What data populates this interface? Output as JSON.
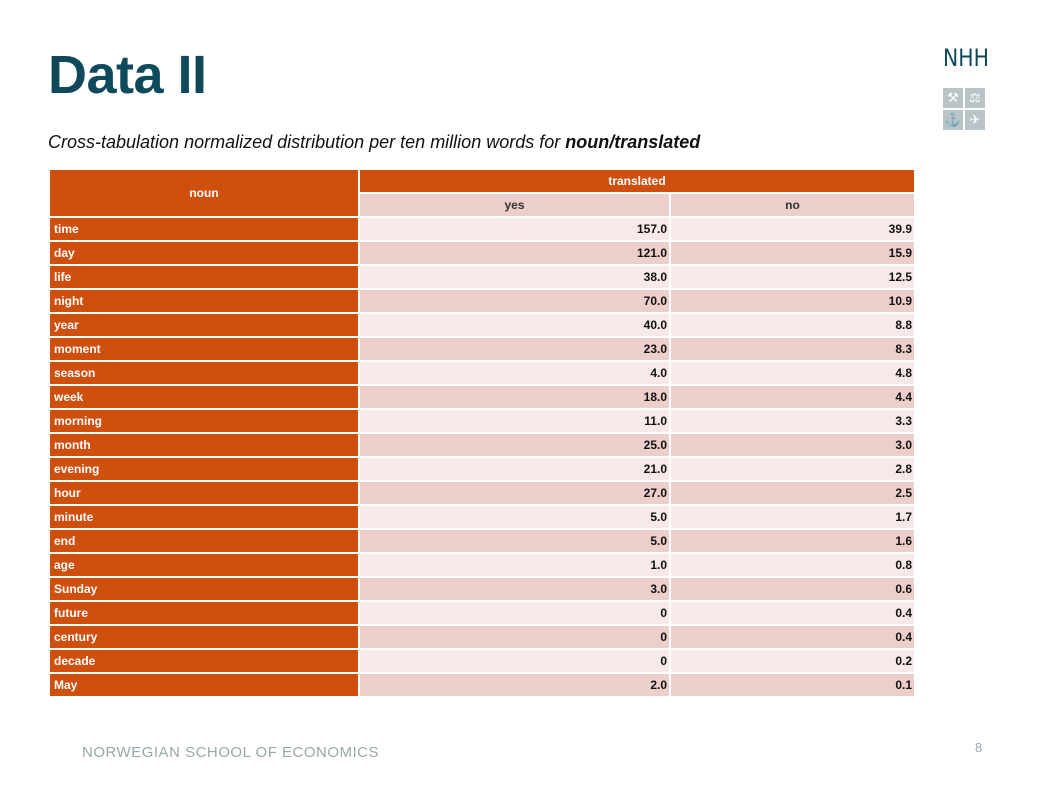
{
  "slide": {
    "title": "Data II",
    "subtitle_prefix": "Cross-tabulation normalized distribution per ten million words for ",
    "subtitle_bold": "noun/translated",
    "logo_text": "NHH",
    "logo_icons": [
      "hammer-pick-icon",
      "scales-icon",
      "anchor-icon",
      "ship-icon"
    ],
    "footer": "NORWEGIAN SCHOOL OF ECONOMICS",
    "page_number": "8"
  },
  "table": {
    "row_header": "noun",
    "col_header": "translated",
    "col_yes": "yes",
    "col_no": "no",
    "rows": [
      {
        "noun": "time",
        "yes": "157.0",
        "no": "39.9"
      },
      {
        "noun": "day",
        "yes": "121.0",
        "no": "15.9"
      },
      {
        "noun": "life",
        "yes": "38.0",
        "no": "12.5"
      },
      {
        "noun": "night",
        "yes": "70.0",
        "no": "10.9"
      },
      {
        "noun": "year",
        "yes": "40.0",
        "no": "8.8"
      },
      {
        "noun": "moment",
        "yes": "23.0",
        "no": "8.3"
      },
      {
        "noun": "season",
        "yes": "4.0",
        "no": "4.8"
      },
      {
        "noun": "week",
        "yes": "18.0",
        "no": "4.4"
      },
      {
        "noun": "morning",
        "yes": "11.0",
        "no": "3.3"
      },
      {
        "noun": "month",
        "yes": "25.0",
        "no": "3.0"
      },
      {
        "noun": "evening",
        "yes": "21.0",
        "no": "2.8"
      },
      {
        "noun": "hour",
        "yes": "27.0",
        "no": "2.5"
      },
      {
        "noun": "minute",
        "yes": "5.0",
        "no": "1.7"
      },
      {
        "noun": "end",
        "yes": "5.0",
        "no": "1.6"
      },
      {
        "noun": "age",
        "yes": "1.0",
        "no": "0.8"
      },
      {
        "noun": "Sunday",
        "yes": "3.0",
        "no": "0.6"
      },
      {
        "noun": "future",
        "yes": "0",
        "no": "0.4"
      },
      {
        "noun": "century",
        "yes": "0",
        "no": "0.4"
      },
      {
        "noun": "decade",
        "yes": "0",
        "no": "0.2"
      },
      {
        "noun": "May",
        "yes": "2.0",
        "no": "0.1"
      }
    ]
  },
  "colors": {
    "title": "#0e4a5c",
    "header_orange": "#cf4f0f",
    "row_light": "#f6e9e7",
    "row_dark": "#eccfcb"
  }
}
